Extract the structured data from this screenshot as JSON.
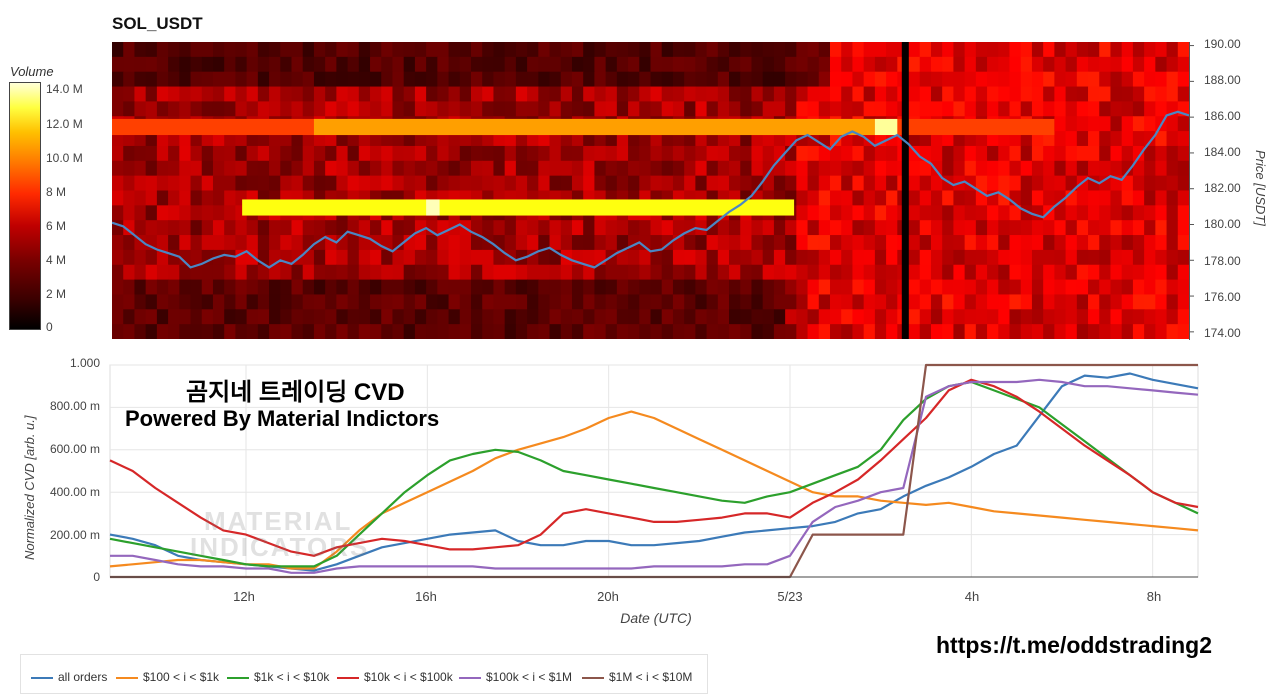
{
  "title": "SOL_USDT",
  "colorbar": {
    "title": "Volume",
    "ticks": [
      "14.0 M",
      "12.0 M",
      "10.0 M",
      "8 M",
      "6 M",
      "4 M",
      "2 M",
      "0"
    ]
  },
  "chart_data": [
    {
      "type": "heatmap",
      "title": "SOL_USDT",
      "ylabel": "Price [USDT]",
      "ylim": [
        173.6,
        190.2
      ],
      "yticks": [
        "190.00",
        "188.00",
        "186.00",
        "184.00",
        "182.00",
        "180.00",
        "178.00",
        "176.00",
        "174.00"
      ],
      "colorscale": "hot",
      "zlim": [
        0,
        15
      ],
      "price_series": {
        "color": "#4a87c4",
        "x": [
          0,
          0.25,
          0.5,
          0.75,
          1,
          1.25,
          1.5,
          1.75,
          2,
          2.25,
          2.5,
          2.75,
          3,
          3.25,
          3.5,
          3.75,
          4,
          4.25,
          4.5,
          4.75,
          5,
          5.25,
          5.5,
          5.75,
          6,
          6.25,
          6.5,
          6.75,
          7,
          7.25,
          7.5,
          7.75,
          8,
          8.25,
          8.5,
          8.75,
          9,
          9.25,
          9.5,
          9.75,
          10,
          10.25,
          10.5,
          10.75,
          11,
          11.25,
          11.5,
          11.75,
          12,
          12.25,
          12.5,
          12.75,
          13,
          13.25,
          13.5,
          13.75,
          14,
          14.25,
          14.5,
          14.75,
          15,
          15.25,
          15.5,
          15.75,
          16,
          16.25,
          16.5,
          16.75,
          17,
          17.25,
          17.5,
          17.75,
          18,
          18.25,
          18.5,
          18.75,
          19,
          19.25,
          19.5,
          19.75,
          20,
          20.25,
          20.5,
          20.75,
          21,
          21.25,
          21.5,
          21.75,
          22,
          22.25,
          22.5,
          22.75,
          23,
          23.25,
          23.5,
          23.75,
          24
        ],
        "y": [
          180.1,
          179.9,
          179.4,
          178.9,
          178.6,
          178.4,
          178.2,
          177.6,
          177.8,
          178.1,
          178.3,
          178.2,
          178.5,
          178.0,
          177.6,
          178.0,
          177.8,
          178.3,
          178.9,
          179.3,
          179.0,
          179.6,
          179.4,
          179.2,
          178.8,
          178.5,
          179.0,
          179.5,
          179.8,
          179.4,
          179.7,
          180.0,
          179.6,
          179.3,
          178.9,
          178.4,
          178.0,
          178.2,
          178.5,
          178.7,
          178.3,
          178.0,
          177.8,
          177.6,
          178.0,
          178.4,
          178.7,
          179.0,
          178.5,
          178.6,
          179.1,
          179.5,
          179.8,
          179.7,
          180.2,
          180.7,
          181.1,
          181.6,
          182.4,
          183.3,
          184.0,
          184.7,
          185.0,
          184.6,
          184.2,
          184.9,
          185.2,
          184.9,
          184.4,
          184.7,
          185.0,
          184.5,
          183.8,
          183.4,
          182.6,
          182.2,
          182.4,
          182.0,
          181.6,
          181.8,
          181.4,
          180.9,
          180.6,
          180.4,
          181.0,
          181.5,
          182.1,
          182.6,
          182.3,
          182.7,
          182.5,
          183.3,
          184.2,
          185.0,
          186.1,
          186.3,
          186.1,
          186.0,
          186.1
        ]
      }
    },
    {
      "type": "line",
      "xlabel": "Date (UTC)",
      "ylabel": "Normalized CVD [arb. u.]",
      "ylim": [
        0,
        1
      ],
      "yticks": [
        "1.000",
        "800.00 m",
        "600.00 m",
        "400.00 m",
        "200.00 m",
        "0"
      ],
      "xticks": [
        "12h",
        "16h",
        "20h",
        "5/23",
        "4h",
        "8h"
      ],
      "x": [
        0,
        0.5,
        1,
        1.5,
        2,
        2.5,
        3,
        3.5,
        4,
        4.5,
        5,
        5.5,
        6,
        6.5,
        7,
        7.5,
        8,
        8.5,
        9,
        9.5,
        10,
        10.5,
        11,
        11.5,
        12,
        12.5,
        13,
        13.5,
        14,
        14.5,
        15,
        15.5,
        16,
        16.5,
        17,
        17.5,
        18,
        18.5,
        19,
        19.5,
        20,
        20.5,
        21,
        21.5,
        22,
        22.5,
        23,
        23.5,
        24
      ],
      "series": [
        {
          "name": "all orders",
          "color": "#3c7ab8",
          "values": [
            0.2,
            0.18,
            0.15,
            0.1,
            0.08,
            0.07,
            0.06,
            0.05,
            0.04,
            0.03,
            0.06,
            0.1,
            0.14,
            0.16,
            0.18,
            0.2,
            0.21,
            0.22,
            0.17,
            0.15,
            0.15,
            0.17,
            0.17,
            0.15,
            0.15,
            0.16,
            0.17,
            0.19,
            0.21,
            0.22,
            0.23,
            0.24,
            0.26,
            0.3,
            0.32,
            0.38,
            0.43,
            0.47,
            0.52,
            0.58,
            0.62,
            0.76,
            0.9,
            0.95,
            0.94,
            0.96,
            0.93,
            0.91,
            0.89
          ]
        },
        {
          "name": "$100 < i < $1k",
          "color": "#f58a1f",
          "values": [
            0.05,
            0.06,
            0.07,
            0.08,
            0.08,
            0.07,
            0.06,
            0.06,
            0.04,
            0.04,
            0.12,
            0.22,
            0.3,
            0.35,
            0.4,
            0.45,
            0.5,
            0.56,
            0.6,
            0.63,
            0.66,
            0.7,
            0.75,
            0.78,
            0.75,
            0.7,
            0.65,
            0.6,
            0.55,
            0.5,
            0.45,
            0.4,
            0.38,
            0.38,
            0.36,
            0.35,
            0.34,
            0.35,
            0.33,
            0.31,
            0.3,
            0.29,
            0.28,
            0.27,
            0.26,
            0.25,
            0.24,
            0.23,
            0.22
          ]
        },
        {
          "name": "$1k < i < $10k",
          "color": "#2ca02c",
          "values": [
            0.18,
            0.16,
            0.14,
            0.12,
            0.1,
            0.08,
            0.06,
            0.05,
            0.05,
            0.05,
            0.1,
            0.2,
            0.3,
            0.4,
            0.48,
            0.55,
            0.58,
            0.6,
            0.59,
            0.55,
            0.5,
            0.48,
            0.46,
            0.44,
            0.42,
            0.4,
            0.38,
            0.36,
            0.35,
            0.38,
            0.4,
            0.44,
            0.48,
            0.52,
            0.6,
            0.74,
            0.84,
            0.9,
            0.92,
            0.88,
            0.84,
            0.8,
            0.72,
            0.64,
            0.56,
            0.48,
            0.4,
            0.35,
            0.3
          ]
        },
        {
          "name": "$10k < i < $100k",
          "color": "#d62728",
          "values": [
            0.55,
            0.5,
            0.42,
            0.35,
            0.28,
            0.22,
            0.2,
            0.16,
            0.12,
            0.1,
            0.14,
            0.16,
            0.18,
            0.17,
            0.15,
            0.13,
            0.13,
            0.14,
            0.15,
            0.2,
            0.3,
            0.32,
            0.3,
            0.28,
            0.26,
            0.26,
            0.27,
            0.28,
            0.3,
            0.3,
            0.28,
            0.35,
            0.4,
            0.46,
            0.55,
            0.65,
            0.75,
            0.88,
            0.93,
            0.9,
            0.85,
            0.78,
            0.7,
            0.62,
            0.55,
            0.48,
            0.4,
            0.35,
            0.33
          ]
        },
        {
          "name": "$100k < i < $1M",
          "color": "#9467bd",
          "values": [
            0.1,
            0.1,
            0.08,
            0.06,
            0.05,
            0.05,
            0.04,
            0.04,
            0.02,
            0.02,
            0.04,
            0.05,
            0.05,
            0.05,
            0.05,
            0.05,
            0.05,
            0.04,
            0.04,
            0.04,
            0.04,
            0.04,
            0.04,
            0.04,
            0.05,
            0.05,
            0.05,
            0.05,
            0.06,
            0.06,
            0.1,
            0.26,
            0.33,
            0.36,
            0.4,
            0.42,
            0.85,
            0.9,
            0.92,
            0.92,
            0.92,
            0.93,
            0.92,
            0.9,
            0.9,
            0.89,
            0.88,
            0.87,
            0.86
          ]
        },
        {
          "name": "$1M < i < $10M",
          "color": "#8c564b",
          "values": [
            0,
            0,
            0,
            0,
            0,
            0,
            0,
            0,
            0,
            0,
            0,
            0,
            0,
            0,
            0,
            0,
            0,
            0,
            0,
            0,
            0,
            0,
            0,
            0,
            0,
            0,
            0,
            0,
            0,
            0,
            0,
            0.2,
            0.2,
            0.2,
            0.2,
            0.2,
            1,
            1,
            1,
            1,
            1,
            1,
            1,
            1,
            1,
            1,
            1,
            1,
            1
          ]
        }
      ]
    }
  ],
  "watermark": {
    "line1": "곰지네 트레이딩 CVD",
    "line2": "Powered By Material Indictors",
    "logo_line1": "MATERIAL",
    "logo_line2": "INDICATORS"
  },
  "url": "https://t.me/oddstrading2",
  "legend": [
    "all orders",
    "$100 < i < $1k",
    "$1k < i < $10k",
    "$10k < i < $100k",
    "$100k < i < $1M",
    "$1M < i < $10M"
  ]
}
